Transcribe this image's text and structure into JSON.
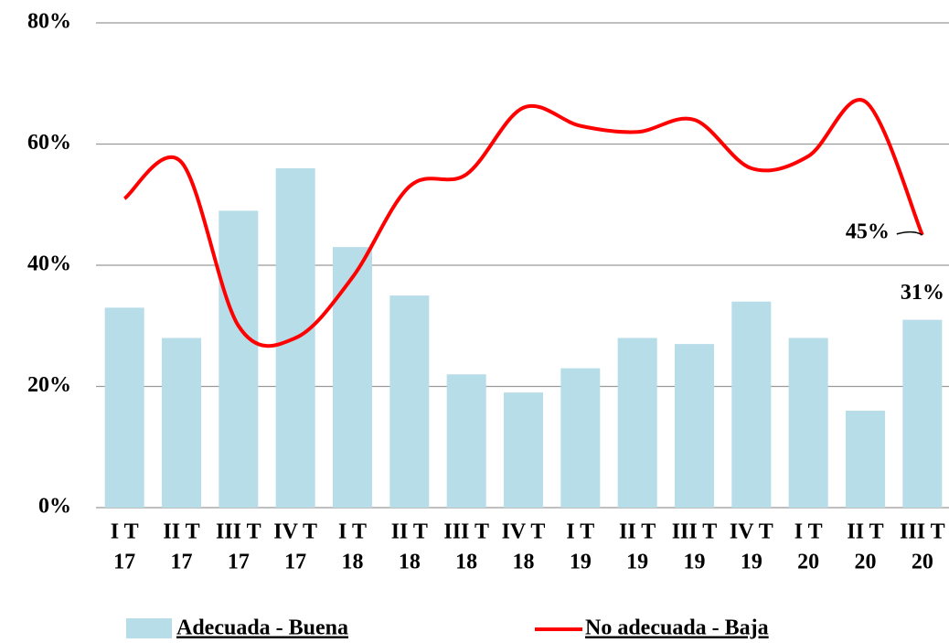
{
  "chart_data": {
    "type": "bar_line",
    "categories": [
      [
        "I T",
        "17"
      ],
      [
        "II T",
        "17"
      ],
      [
        "III T",
        "17"
      ],
      [
        "IV T",
        "17"
      ],
      [
        "I T",
        "18"
      ],
      [
        "II T",
        "18"
      ],
      [
        "III T",
        "18"
      ],
      [
        "IV T",
        "18"
      ],
      [
        "I T",
        "19"
      ],
      [
        "II T",
        "19"
      ],
      [
        "III T",
        "19"
      ],
      [
        "IV T",
        "19"
      ],
      [
        "I T",
        "20"
      ],
      [
        "II T",
        "20"
      ],
      [
        "III T",
        "20"
      ]
    ],
    "series": [
      {
        "name": "Adecuada - Buena",
        "type": "bar",
        "color": "#b7dde8",
        "values": [
          33,
          28,
          49,
          56,
          43,
          35,
          22,
          19,
          23,
          28,
          27,
          34,
          28,
          16,
          31
        ],
        "value_labels": [
          null,
          null,
          null,
          null,
          null,
          null,
          null,
          null,
          null,
          null,
          null,
          null,
          null,
          null,
          "31%"
        ]
      },
      {
        "name": "No adecuada - Baja",
        "type": "line",
        "color": "#ff0000",
        "values": [
          51,
          57,
          30,
          28,
          38,
          53,
          55,
          66,
          63,
          62,
          64,
          56,
          58,
          67,
          45
        ],
        "value_labels": [
          null,
          null,
          null,
          null,
          null,
          null,
          null,
          null,
          null,
          null,
          null,
          null,
          null,
          null,
          "45%"
        ]
      }
    ],
    "ylim": [
      0,
      80
    ],
    "yticks": [
      {
        "value": 0,
        "label": "0%"
      },
      {
        "value": 20,
        "label": "20%"
      },
      {
        "value": 40,
        "label": "40%"
      },
      {
        "value": 60,
        "label": "60%"
      },
      {
        "value": 80,
        "label": "80%"
      }
    ],
    "grid": true,
    "legend": "bottom"
  }
}
